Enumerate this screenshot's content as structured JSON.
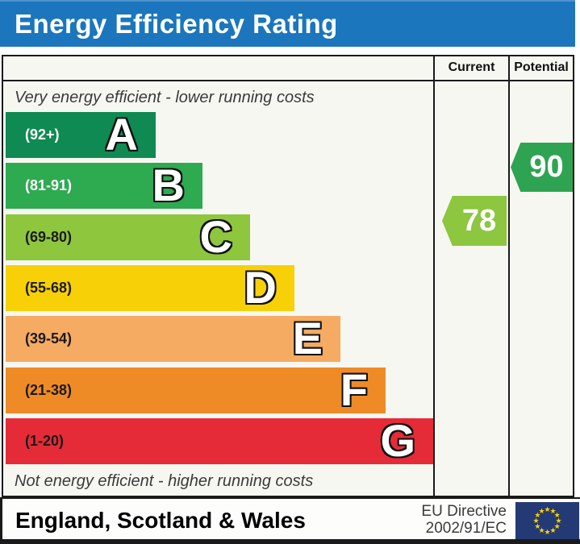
{
  "title": "Energy Efficiency Rating",
  "columns": {
    "current": "Current",
    "potential": "Potential"
  },
  "chart_data": {
    "type": "bar",
    "title": "Energy Efficiency Rating",
    "top_note": "Very energy efficient - lower running costs",
    "bottom_note": "Not energy efficient - higher running costs",
    "score_scale": [
      1,
      100
    ],
    "legend_position": "right-columns",
    "bands": [
      {
        "letter": "A",
        "range_label": "(92+)",
        "min": 92,
        "max": null,
        "color": "#0f8a52",
        "range_text_color": "#ffffff"
      },
      {
        "letter": "B",
        "range_label": "(81-91)",
        "min": 81,
        "max": 91,
        "color": "#2eaa50",
        "range_text_color": "#ffffff"
      },
      {
        "letter": "C",
        "range_label": "(69-80)",
        "min": 69,
        "max": 80,
        "color": "#8ec63d",
        "range_text_color": "#1a1a1a"
      },
      {
        "letter": "D",
        "range_label": "(55-68)",
        "min": 55,
        "max": 68,
        "color": "#f7d008",
        "range_text_color": "#1a1a1a"
      },
      {
        "letter": "E",
        "range_label": "(39-54)",
        "min": 39,
        "max": 54,
        "color": "#f5ab62",
        "range_text_color": "#1a1a1a"
      },
      {
        "letter": "F",
        "range_label": "(21-38)",
        "min": 21,
        "max": 38,
        "color": "#ee8b27",
        "range_text_color": "#1a1a1a"
      },
      {
        "letter": "G",
        "range_label": "(1-20)",
        "min": 1,
        "max": 20,
        "color": "#e62b38",
        "range_text_color": "#1a1a1a"
      }
    ],
    "ratings": {
      "current": {
        "value": 78,
        "band": "C",
        "color": "#8dc63f"
      },
      "potential": {
        "value": 90,
        "band": "B",
        "color": "#2ea452"
      }
    }
  },
  "footer": {
    "region": "England, Scotland & Wales",
    "directive_line1": "EU Directive",
    "directive_line2": "2002/91/EC",
    "flag": "eu-flag"
  },
  "colors": {
    "header_blue": "#1b76bd",
    "flag_navy": "#243a75",
    "flag_star_yellow": "#ffd200"
  }
}
